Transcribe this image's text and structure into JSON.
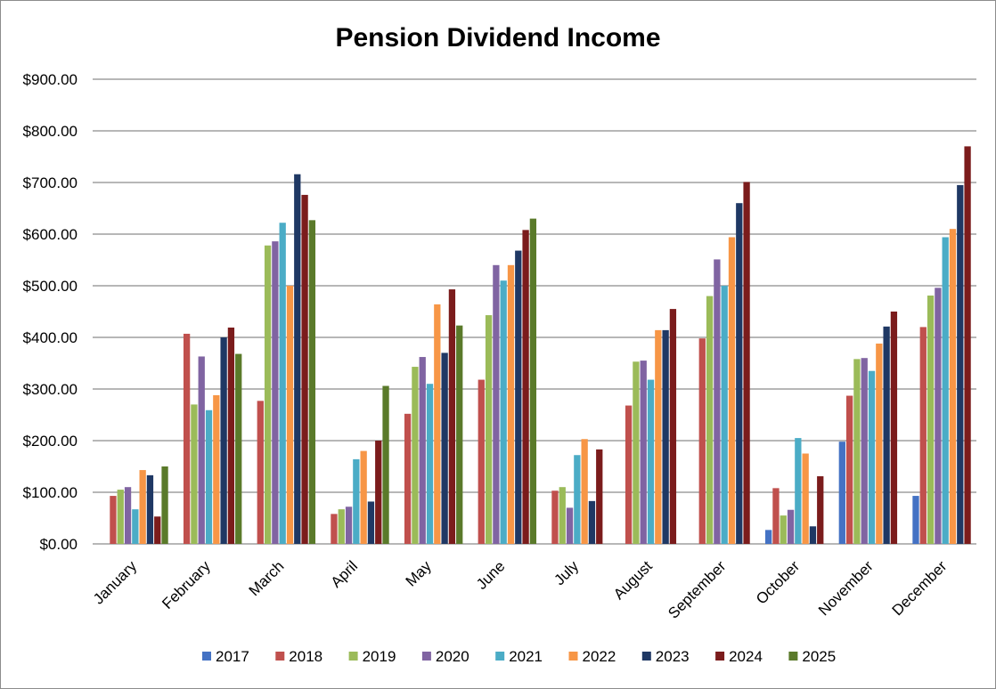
{
  "chart_data": {
    "type": "bar",
    "title": "Pension Dividend Income",
    "xlabel": "",
    "ylabel": "",
    "ylim": [
      0,
      900
    ],
    "yticks": [
      "$0.00",
      "$100.00",
      "$200.00",
      "$300.00",
      "$400.00",
      "$500.00",
      "$600.00",
      "$700.00",
      "$800.00",
      "$900.00"
    ],
    "grid": true,
    "legend_position": "bottom",
    "categories": [
      "January",
      "February",
      "March",
      "April",
      "May",
      "June",
      "July",
      "August",
      "September",
      "October",
      "November",
      "December"
    ],
    "series": [
      {
        "name": "2017",
        "color": "#4472c4",
        "values": [
          0,
          0,
          0,
          0,
          0,
          0,
          0,
          0,
          0,
          27,
          198,
          93
        ]
      },
      {
        "name": "2018",
        "color": "#c0504d",
        "values": [
          93,
          407,
          277,
          58,
          252,
          318,
          103,
          268,
          398,
          108,
          287,
          420
        ]
      },
      {
        "name": "2019",
        "color": "#9bbb59",
        "values": [
          105,
          270,
          578,
          67,
          343,
          443,
          110,
          353,
          480,
          55,
          358,
          481
        ]
      },
      {
        "name": "2020",
        "color": "#8064a2",
        "values": [
          110,
          363,
          586,
          72,
          362,
          540,
          70,
          355,
          551,
          66,
          360,
          496
        ]
      },
      {
        "name": "2021",
        "color": "#4bacc6",
        "values": [
          67,
          259,
          622,
          164,
          310,
          510,
          172,
          318,
          500,
          205,
          335,
          594
        ]
      },
      {
        "name": "2022",
        "color": "#f79646",
        "values": [
          143,
          288,
          500,
          180,
          464,
          540,
          203,
          414,
          594,
          175,
          388,
          610
        ]
      },
      {
        "name": "2023",
        "color": "#1f3864",
        "values": [
          133,
          400,
          716,
          82,
          370,
          568,
          83,
          414,
          660,
          34,
          421,
          695
        ]
      },
      {
        "name": "2024",
        "color": "#7b1c1c",
        "values": [
          53,
          419,
          676,
          200,
          493,
          608,
          183,
          455,
          701,
          131,
          450,
          770
        ]
      },
      {
        "name": "2025",
        "color": "#5a7a2a",
        "values": [
          150,
          368,
          627,
          306,
          423,
          630,
          0,
          0,
          0,
          0,
          0,
          0
        ]
      }
    ]
  }
}
